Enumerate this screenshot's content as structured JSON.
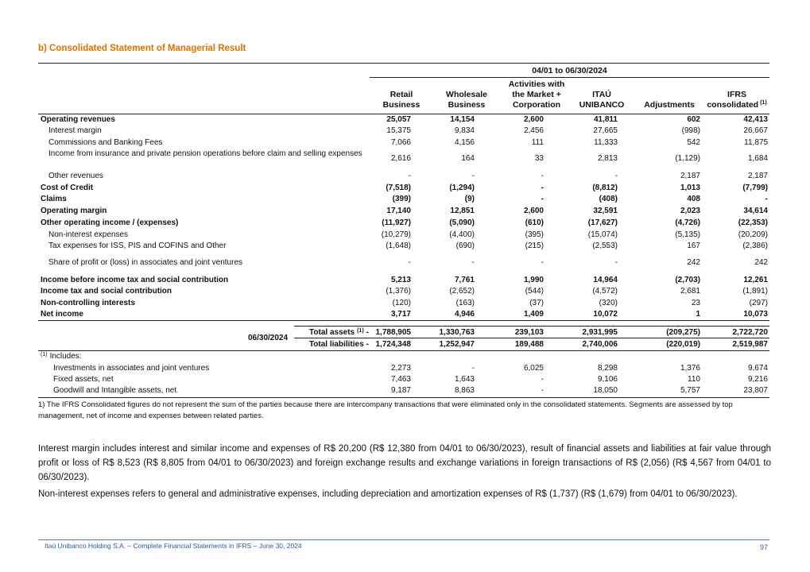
{
  "header": {
    "title": "b) Consolidated Statement of Managerial Result"
  },
  "table": {
    "period": "04/01 to 06/30/2024",
    "columns": [
      "Retail Business",
      "Wholesale Business",
      "Activities with the Market + Corporation",
      "ITAÚ UNIBANCO",
      "Adjustments",
      "IFRS consolidated"
    ],
    "column_note": "(1)",
    "rows": [
      {
        "label": "Operating revenues",
        "values": [
          "25,057",
          "14,154",
          "2,600",
          "41,811",
          "602",
          "42,413"
        ]
      },
      {
        "label": "Interest margin",
        "values": [
          "15,375",
          "9,834",
          "2,456",
          "27,665",
          "(998)",
          "26,667"
        ]
      },
      {
        "label": "Commissions and Banking Fees",
        "values": [
          "7,066",
          "4,156",
          "111",
          "11,333",
          "542",
          "11,875"
        ]
      },
      {
        "label": "Income from insurance and private pension operations before claim and selling expenses",
        "values": [
          "2,616",
          "164",
          "33",
          "2,813",
          "(1,129)",
          "1,684"
        ]
      },
      {
        "label": "Other revenues",
        "values": [
          "-",
          "-",
          "-",
          "-",
          "2,187",
          "2,187"
        ]
      },
      {
        "label": "Cost of Credit",
        "values": [
          "(7,518)",
          "(1,294)",
          "-",
          "(8,812)",
          "1,013",
          "(7,799)"
        ]
      },
      {
        "label": "Claims",
        "values": [
          "(399)",
          "(9)",
          "-",
          "(408)",
          "408",
          "-"
        ]
      },
      {
        "label": "Operating margin",
        "values": [
          "17,140",
          "12,851",
          "2,600",
          "32,591",
          "2,023",
          "34,614"
        ]
      },
      {
        "label": "Other operating income / (expenses)",
        "values": [
          "(11,927)",
          "(5,090)",
          "(610)",
          "(17,627)",
          "(4,726)",
          "(22,353)"
        ]
      },
      {
        "label": "Non-interest expenses",
        "values": [
          "(10,279)",
          "(4,400)",
          "(395)",
          "(15,074)",
          "(5,135)",
          "(20,209)"
        ]
      },
      {
        "label": "Tax expenses for ISS, PIS and COFINS and Other",
        "values": [
          "(1,648)",
          "(690)",
          "(215)",
          "(2,553)",
          "167",
          "(2,386)"
        ]
      },
      {
        "label": "Share of profit or (loss) in associates and joint ventures",
        "values": [
          "-",
          "-",
          "-",
          "-",
          "242",
          "242"
        ]
      },
      {
        "label": "Income before income tax and social contribution",
        "values": [
          "5,213",
          "7,761",
          "1,990",
          "14,964",
          "(2,703)",
          "12,261"
        ]
      },
      {
        "label": "Income tax and social contribution",
        "values": [
          "(1,376)",
          "(2,652)",
          "(544)",
          "(4,572)",
          "2,681",
          "(1,891)"
        ]
      },
      {
        "label": "Non-controlling interests",
        "values": [
          "(120)",
          "(163)",
          "(37)",
          "(320)",
          "23",
          "(297)"
        ]
      },
      {
        "label": "Net income",
        "values": [
          "3,717",
          "4,946",
          "1,409",
          "10,072",
          "1",
          "10,073"
        ]
      }
    ],
    "balance": {
      "date": "06/30/2024",
      "rows": [
        {
          "label": "Total assets",
          "note": "(1)",
          "dash": "-",
          "values": [
            "1,788,905",
            "1,330,763",
            "239,103",
            "2,931,995",
            "(209,275)",
            "2,722,720"
          ]
        },
        {
          "label": "Total liabilities",
          "dash": "-",
          "values": [
            "1,724,348",
            "1,252,947",
            "189,488",
            "2,740,006",
            "(220,019)",
            "2,519,987"
          ]
        }
      ]
    },
    "includes": {
      "note": "(1)",
      "label": "Includes:",
      "rows": [
        {
          "label": "Investments in associates and joint ventures",
          "values": [
            "2,273",
            "-",
            "6,025",
            "8,298",
            "1,376",
            "9,674"
          ]
        },
        {
          "label": "Fixed assets, net",
          "values": [
            "7,463",
            "1,643",
            "-",
            "9,106",
            "110",
            "9,216"
          ]
        },
        {
          "label": "Goodwill and Intangible assets, net",
          "values": [
            "9,187",
            "8,863",
            "-",
            "18,050",
            "5,757",
            "23,807"
          ]
        }
      ]
    },
    "footnote": "1) The IFRS Consolidated figures do not represent the sum of the parties because there are intercompany transactions that were eliminated only in the consolidated statements. Segments are assessed by top management, net of income and expenses between related parties."
  },
  "paragraphs": [
    "Interest margin includes interest and similar income and expenses of R$ 20,200 (R$ 12,380 from 04/01 to 06/30/2023), result of financial assets and liabilities at fair value through profit or loss of R$ 8,523 (R$ 8,805 from 04/01 to 06/30/2023) and foreign exchange results and exchange variations in foreign transactions of R$ (2,056) (R$ 4,567 from 04/01 to 06/30/2023).",
    "Non-interest expenses refers to general and administrative expenses, including depreciation and amortization expenses of R$ (1,737) (R$ (1,679) from 04/01 to 06/30/2023)."
  ],
  "footer": {
    "text": "Itaú Unibanco Holding S.A. – Complete Financial Statements in IFRS – June 30, 2024",
    "page": "97"
  }
}
